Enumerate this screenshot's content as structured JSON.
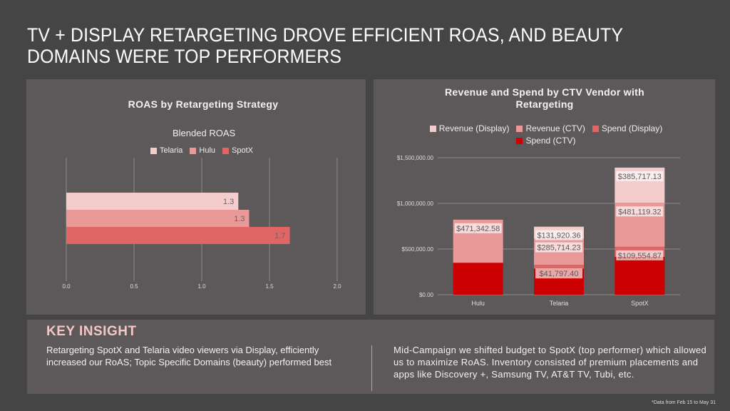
{
  "page": {
    "title": "TV + DISPLAY RETARGETING DROVE EFFICIENT ROAS, AND BEAUTY DOMAINS WERE TOP PERFORMERS",
    "background": "#464546",
    "panel_color": "#5d595a",
    "footnote": "*Data from Feb 15 to May 31"
  },
  "insight": {
    "title": "KEY INSIGHT",
    "left_text": "Retargeting SpotX and Telaria video viewers via Display, efficiently increased our RoAS; Topic Specific Domains (beauty) performed best",
    "right_text": "Mid-Campaign we shifted budget to SpotX (top performer) which allowed us to maximize RoAS. Inventory consisted of premium placements and apps like Discovery +, Samsung TV, AT&T TV, Tubi, etc."
  },
  "chart_data": [
    {
      "type": "bar",
      "orientation": "horizontal",
      "title": "ROAS by Retargeting Strategy",
      "subtitle": "Blended ROAS",
      "categories": [
        "Blended ROAS"
      ],
      "series": [
        {
          "name": "Telaria",
          "values": [
            1.27
          ],
          "label": "1.3",
          "color": "#f4cccc"
        },
        {
          "name": "Hulu",
          "values": [
            1.35
          ],
          "label": "1.3",
          "color": "#ea9999"
        },
        {
          "name": "SpotX",
          "values": [
            1.65
          ],
          "label": "1.7",
          "color": "#e06666"
        }
      ],
      "xlim": [
        0,
        2.0
      ],
      "xticks": [
        "0.0",
        "0.5",
        "1.0",
        "1.5",
        "2.0"
      ],
      "grid": true,
      "legend": "top"
    },
    {
      "type": "bar",
      "stacked": true,
      "title": "Revenue and Spend by CTV Vendor with Retargeting",
      "categories": [
        "Hulu",
        "Telaria",
        "SpotX"
      ],
      "series": [
        {
          "name": "Revenue (Display)",
          "color": "#f4cccc",
          "values": [
            0,
            131920.36,
            385717.13
          ],
          "labels": [
            "",
            "$131,920.36",
            "$385,717.13"
          ]
        },
        {
          "name": "Revenue (CTV)",
          "color": "#ea9999",
          "values": [
            471342.58,
            285714.23,
            481119.32
          ],
          "labels": [
            "$471,342.58",
            "$285,714.23",
            "$481,119.32"
          ]
        },
        {
          "name": "Spend (Display)",
          "color": "#e06666",
          "values": [
            0,
            41797.4,
            109554.87
          ],
          "labels": [
            "",
            "$41,797.40",
            "$109,554.87"
          ]
        },
        {
          "name": "Spend (CTV)",
          "color": "#cc0000",
          "values": [
            350000,
            285000,
            415000
          ],
          "labels": [
            "",
            "",
            ""
          ]
        }
      ],
      "ylim": [
        0,
        1500000
      ],
      "yticks": [
        "$0.00",
        "$500,000.00",
        "$1,000,000.00",
        "$1,500,000.00"
      ],
      "grid": true,
      "legend": "top"
    }
  ]
}
